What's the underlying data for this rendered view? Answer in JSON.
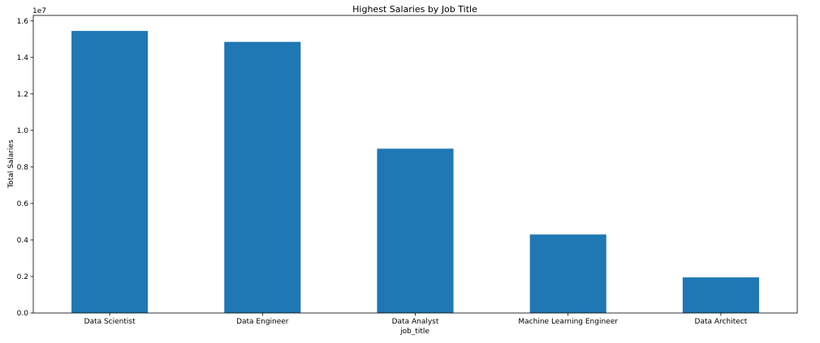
{
  "chart_data": {
    "type": "bar",
    "title": "Highest Salaries by Job Title",
    "xlabel": "job_title",
    "ylabel": "Total Salaries",
    "y_offset_text": "1e7",
    "categories": [
      "Data Scientist",
      "Data Engineer",
      "Data Analyst",
      "Machine Learning Engineer",
      "Data Architect"
    ],
    "values": [
      15450000,
      14850000,
      9000000,
      4300000,
      1950000
    ],
    "ylim": [
      0,
      16300000
    ],
    "yticks": [
      0,
      2000000,
      4000000,
      6000000,
      8000000,
      10000000,
      12000000,
      14000000,
      16000000
    ],
    "ytick_labels": [
      "0.0",
      "0.2",
      "0.4",
      "0.6",
      "0.8",
      "1.0",
      "1.2",
      "1.4",
      "1.6"
    ],
    "grid": false,
    "colors": {
      "bar": "#1f77b4"
    }
  }
}
